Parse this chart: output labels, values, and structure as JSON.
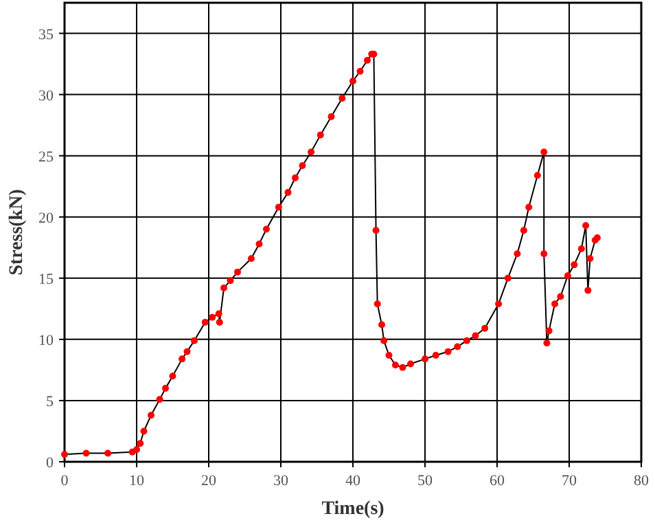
{
  "chart_data": {
    "type": "line",
    "xlabel": "Time(s)",
    "ylabel": "Stress(kN)",
    "xlim": [
      0,
      80
    ],
    "ylim": [
      0,
      37.5
    ],
    "xticks": [
      0,
      10,
      20,
      30,
      40,
      50,
      60,
      70,
      80
    ],
    "yticks": [
      0,
      5,
      10,
      15,
      20,
      25,
      30,
      35
    ],
    "grid": true,
    "marker": "circle",
    "line_style": "solid",
    "series": [
      {
        "color": "#ff0000",
        "x": [
          0,
          3,
          6,
          9.4,
          10,
          10.5,
          11,
          12,
          13.2,
          14,
          15,
          16.3,
          17,
          18,
          19.5,
          20.5,
          21.4,
          21.5,
          22.1,
          23,
          24,
          25.9,
          27,
          28,
          29.7,
          31,
          32,
          33,
          34.2,
          35.5,
          37,
          38.5,
          40,
          41,
          42,
          42.6,
          42.9,
          43.2,
          43.4,
          44,
          44.3,
          45,
          45.9,
          46.9,
          48,
          50,
          51.5,
          53.2,
          54.5,
          55.8,
          57,
          58.3,
          60.2,
          61.5,
          62.8,
          63.7,
          64.4,
          65.6,
          66.5,
          66.5,
          66.9,
          67.2,
          68,
          68.8,
          69.8,
          70.7,
          71.7,
          72.3,
          72.6,
          72.9,
          73.6,
          73.9
        ],
        "values": [
          0.6,
          0.7,
          0.7,
          0.8,
          1,
          1.5,
          2.5,
          3.8,
          5.1,
          6,
          7,
          8.4,
          9,
          9.9,
          11.4,
          11.8,
          12.1,
          11.4,
          14.2,
          14.8,
          15.5,
          16.6,
          17.8,
          19,
          20.8,
          22,
          23.2,
          24.2,
          25.3,
          26.7,
          28.2,
          29.7,
          31.1,
          31.9,
          32.8,
          33.3,
          33.3,
          18.9,
          12.9,
          11.2,
          9.9,
          8.7,
          7.9,
          7.7,
          8,
          8.4,
          8.7,
          9,
          9.4,
          9.9,
          10.3,
          10.9,
          12.9,
          15,
          17,
          18.9,
          20.8,
          23.4,
          25.3,
          17,
          9.7,
          10.7,
          12.9,
          13.5,
          15.2,
          16.1,
          17.4,
          19.3,
          14,
          16.6,
          18.1,
          18.3
        ]
      }
    ]
  }
}
